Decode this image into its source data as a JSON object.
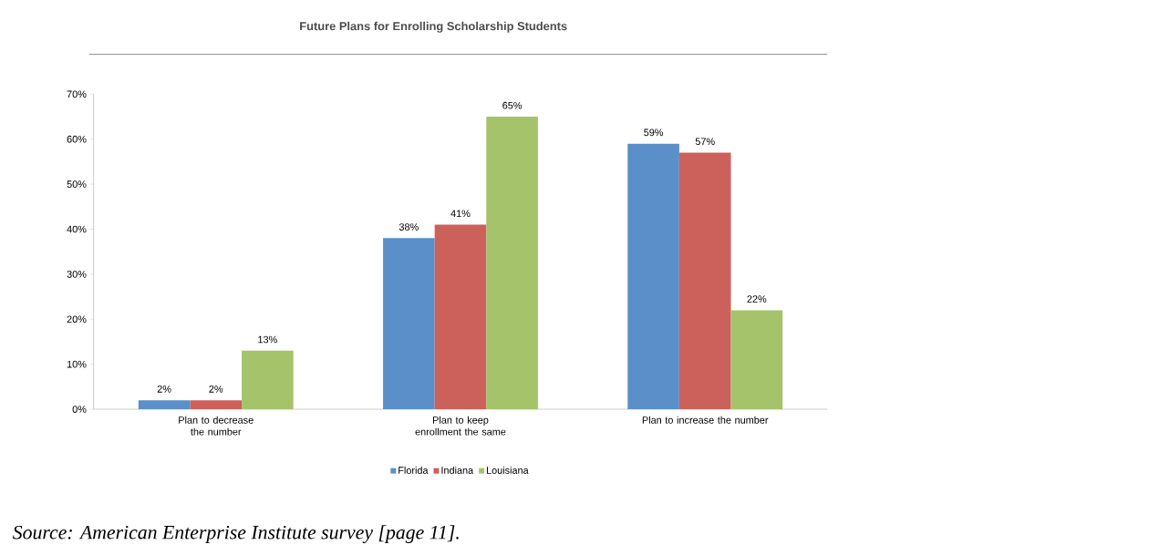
{
  "chart_data": {
    "type": "bar",
    "title": "Future Plans for Enrolling Scholarship Students",
    "categories": [
      "Plan to decrease the number",
      "Plan to keep enrollment the same",
      "Plan to increase the number"
    ],
    "series": [
      {
        "name": "Florida",
        "color": "#5b8fc9",
        "values": [
          2,
          38,
          59
        ],
        "value_labels": [
          "2%",
          "38%",
          "59%"
        ]
      },
      {
        "name": "Indiana",
        "color": "#cc605a",
        "values": [
          2,
          41,
          57
        ],
        "value_labels": [
          "2%",
          "41%",
          "57%"
        ]
      },
      {
        "name": "Louisiana",
        "color": "#a5c36a",
        "values": [
          13,
          65,
          22
        ],
        "value_labels": [
          "13%",
          "65%",
          "22%"
        ]
      }
    ],
    "ylim": [
      0,
      70
    ],
    "yticks": [
      {
        "value": 0,
        "label": "0%"
      },
      {
        "value": 10,
        "label": "10%"
      },
      {
        "value": 20,
        "label": "20%"
      },
      {
        "value": 30,
        "label": "30%"
      },
      {
        "value": 40,
        "label": "40%"
      },
      {
        "value": 50,
        "label": "50%"
      },
      {
        "value": 60,
        "label": "60%"
      },
      {
        "value": 70,
        "label": "70%"
      }
    ],
    "legend": "bottom",
    "annotations": [
      "Source: American Enterprise Institute survey [page 11]."
    ]
  }
}
